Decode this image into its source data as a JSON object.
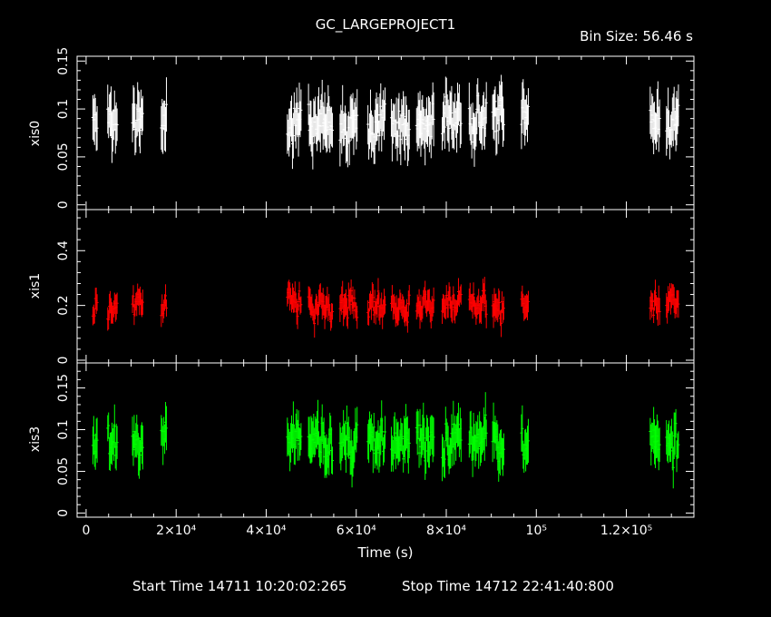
{
  "chart_data": {
    "type": "line",
    "title": "GC_LARGEPROJECT1",
    "bin_size_label": "Bin Size: 56.46 s",
    "xlabel": "Time (s)",
    "xlim": [
      -2000,
      135000
    ],
    "x_tick_labels": [
      {
        "value": 0,
        "label": "0"
      },
      {
        "value": 20000,
        "label": "2×10⁴"
      },
      {
        "value": 40000,
        "label": "4×10⁴"
      },
      {
        "value": 60000,
        "label": "6×10⁴"
      },
      {
        "value": 80000,
        "label": "8×10⁴"
      },
      {
        "value": 100000,
        "label": "10⁵"
      },
      {
        "value": 120000,
        "label": "1.2×10⁵"
      }
    ],
    "start_time": "Start Time 14711 10:20:02:265",
    "stop_time": "Stop Time 14712 22:41:40:800",
    "observation_intervals": [
      [
        1500,
        2500
      ],
      [
        4800,
        7000
      ],
      [
        10300,
        12700
      ],
      [
        16700,
        18000
      ],
      [
        44700,
        47800
      ],
      [
        49400,
        54900
      ],
      [
        56400,
        60200
      ],
      [
        62600,
        66400
      ],
      [
        67800,
        71800
      ],
      [
        73400,
        77200
      ],
      [
        79100,
        83300
      ],
      [
        85100,
        88900
      ],
      [
        90300,
        92800
      ],
      [
        96700,
        98300
      ],
      [
        125300,
        127400
      ],
      [
        128900,
        131600
      ]
    ],
    "panels": [
      {
        "ylabel": "xis0",
        "color": "#ffffff",
        "ylim": [
          -0.005,
          0.155
        ],
        "yticks": [
          0,
          0.05,
          0.1,
          0.15
        ],
        "ytick_labels": [
          "0",
          "0.05",
          "0.1",
          "0.15"
        ],
        "mean": 0.088,
        "spread": 0.02,
        "error": 0.022,
        "seed": 11
      },
      {
        "ylabel": "xis1",
        "color": "#ff0000",
        "ylim": [
          -0.01,
          0.55
        ],
        "yticks": [
          0,
          0.2,
          0.4
        ],
        "ytick_labels": [
          "0",
          "0.2",
          "0.4"
        ],
        "mean": 0.2,
        "spread": 0.045,
        "error": 0.04,
        "seed": 29
      },
      {
        "ylabel": "xis3",
        "color": "#00ff00",
        "ylim": [
          -0.005,
          0.18
        ],
        "yticks": [
          0,
          0.05,
          0.1,
          0.15
        ],
        "ytick_labels": [
          "0",
          "0.05",
          "0.1",
          "0.15"
        ],
        "mean": 0.088,
        "spread": 0.022,
        "error": 0.022,
        "seed": 47
      }
    ]
  }
}
